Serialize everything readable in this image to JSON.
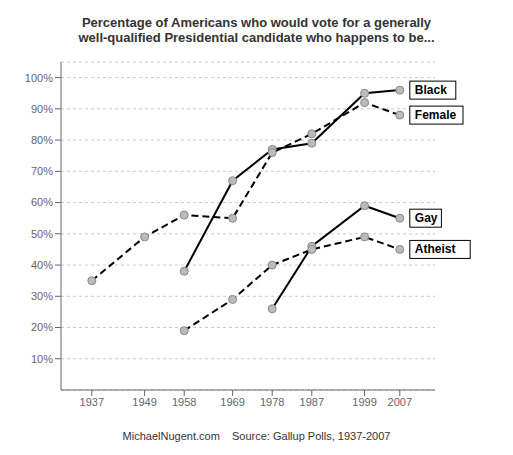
{
  "chart_data": {
    "type": "line",
    "title": "Percentage of Americans who would vote for a generally\nwell-qualified Presidential candidate who happens to be...",
    "annotations": [
      "MichaelNugent.com    Source: Gallup Polls, 1937-2007"
    ],
    "series": [
      {
        "name": "Black",
        "color": "#000000",
        "marker": "o",
        "line_style": "solid",
        "x": [
          1958,
          1969,
          1978,
          1987,
          1999,
          2007
        ],
        "values": [
          38,
          67,
          77,
          79,
          95,
          96
        ]
      },
      {
        "name": "Female",
        "color": "#000000",
        "marker": "o",
        "line_style": "dashed",
        "x": [
          1937,
          1949,
          1958,
          1969,
          1978,
          1987,
          1999,
          2007
        ],
        "values": [
          35,
          49,
          56,
          55,
          76,
          82,
          92,
          88
        ]
      },
      {
        "name": "Gay",
        "color": "#000000",
        "marker": "o",
        "line_style": "solid",
        "x": [
          1978,
          1987,
          1999,
          2007
        ],
        "values": [
          26,
          46,
          59,
          55
        ]
      },
      {
        "name": "Atheist",
        "color": "#000000",
        "marker": "o",
        "line_style": "dashed",
        "x": [
          1958,
          1969,
          1978,
          1987,
          1999,
          2007
        ],
        "values": [
          19,
          29,
          40,
          45,
          49,
          45
        ]
      }
    ],
    "xlim": [
      1930,
      2015
    ],
    "xticks": [
      1937,
      1949,
      1958,
      1969,
      1978,
      1987,
      1999,
      2007
    ],
    "ylim": [
      0,
      105
    ],
    "yticks": [
      {
        "value": 10,
        "label": "10%"
      },
      {
        "value": 20,
        "label": "20%"
      },
      {
        "value": 30,
        "label": "30%"
      },
      {
        "value": 40,
        "label": "40%"
      },
      {
        "value": 50,
        "label": "50%"
      },
      {
        "value": 60,
        "label": "60%"
      },
      {
        "value": 70,
        "label": "70%"
      },
      {
        "value": 80,
        "label": "80%"
      },
      {
        "value": 90,
        "label": "90%"
      },
      {
        "value": 100,
        "label": "100%"
      }
    ],
    "grid": true
  }
}
